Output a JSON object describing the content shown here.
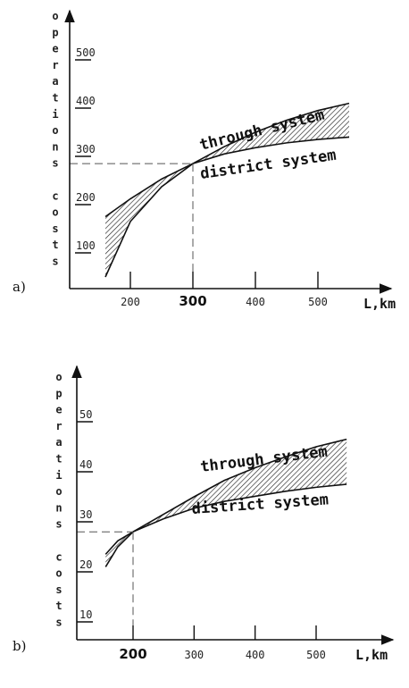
{
  "chart_data": [
    {
      "panel_label": "a)",
      "type": "area",
      "y_label_letters": [
        "o",
        "p",
        "e",
        "r",
        "a",
        "t",
        "i",
        "o",
        "n",
        "s",
        " ",
        "c",
        "o",
        "s",
        "t",
        "s"
      ],
      "x_label": "L,km",
      "x_ticks": [
        200,
        300,
        400,
        500
      ],
      "x_bold_tick": 300,
      "y_ticks": [
        100,
        200,
        300,
        400,
        500
      ],
      "y_tick_labels": [
        "100",
        "200",
        "300",
        "400",
        "500"
      ],
      "crossover": {
        "x": 300,
        "y": 285
      },
      "series": [
        {
          "name": "through system",
          "x": [
            160,
            200,
            250,
            300,
            350,
            400,
            450,
            500,
            550
          ],
          "y": [
            175,
            212,
            253,
            285,
            320,
            350,
            375,
            395,
            410
          ]
        },
        {
          "name": "district system",
          "x": [
            160,
            200,
            250,
            300,
            350,
            400,
            450,
            500,
            550
          ],
          "y": [
            50,
            165,
            237,
            285,
            305,
            318,
            328,
            335,
            340
          ]
        }
      ]
    },
    {
      "panel_label": "b)",
      "type": "area",
      "y_label_letters": [
        "o",
        "p",
        "e",
        "r",
        "a",
        "t",
        "i",
        "o",
        "n",
        "s",
        " ",
        "c",
        "o",
        "s",
        "t",
        "s"
      ],
      "x_label": "L,km",
      "x_ticks": [
        200,
        300,
        400,
        500
      ],
      "x_bold_tick": 200,
      "y_ticks": [
        10,
        20,
        30,
        40,
        50
      ],
      "y_tick_labels": [
        "10",
        "20",
        "30",
        "40",
        "50"
      ],
      "crossover": {
        "x": 200,
        "y": 28
      },
      "series": [
        {
          "name": "through system",
          "x": [
            155,
            175,
            200,
            250,
            300,
            350,
            400,
            450,
            500,
            550
          ],
          "y": [
            23.5,
            26.2,
            28,
            31.5,
            35,
            38.3,
            40.8,
            43,
            45,
            46.5
          ],
          "label_angle": -6
        },
        {
          "name": "district system",
          "x": [
            155,
            175,
            200,
            250,
            300,
            350,
            400,
            450,
            500,
            550
          ],
          "y": [
            21,
            25,
            28,
            30.6,
            32.7,
            34.1,
            35.1,
            36.1,
            36.9,
            37.5
          ],
          "label_angle": -4
        }
      ]
    }
  ]
}
